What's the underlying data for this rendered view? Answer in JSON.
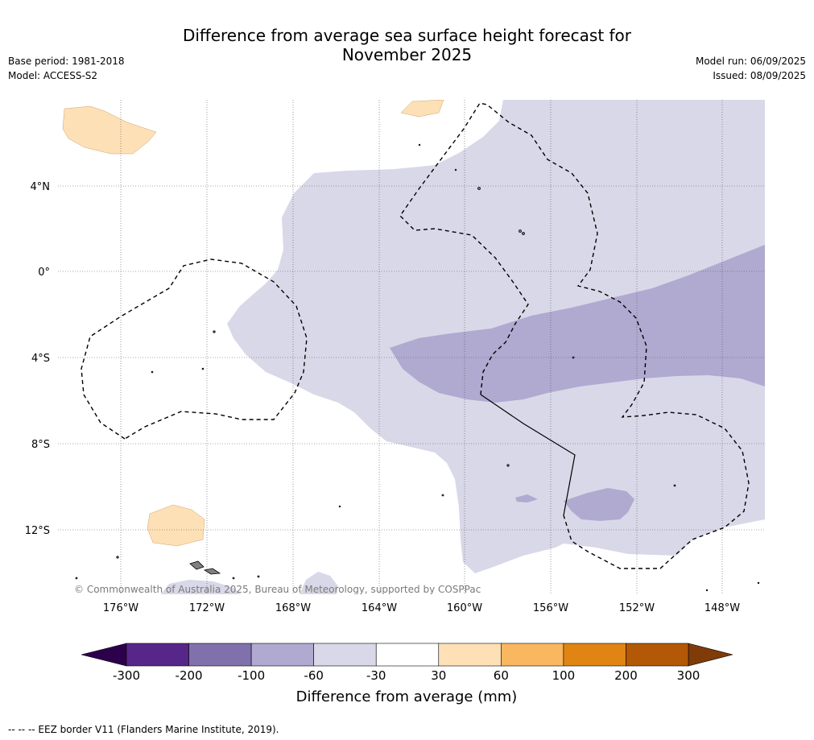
{
  "title_line1": "Difference from average sea surface height forecast for",
  "title_line2": "November 2025",
  "info_left": {
    "base_period": "Base period: 1981-2018",
    "model": "Model: ACCESS-S2"
  },
  "info_right": {
    "model_run": "Model run: 06/09/2025",
    "issued": "Issued: 08/09/2025"
  },
  "map": {
    "lat_labels": [
      "4°N",
      "0°",
      "4°S",
      "8°S",
      "12°S"
    ],
    "lon_labels": [
      "176°W",
      "172°W",
      "168°W",
      "164°W",
      "160°W",
      "156°W",
      "152°W",
      "148°W"
    ],
    "copyright": "© Commonwealth of Australia 2025, Bureau of Meteorology, supported by COSPPac",
    "land_color": "#808080",
    "ocean_color": "#ffffff"
  },
  "colorbar": {
    "title": "Difference from average (mm)",
    "ticks": [
      "-300",
      "-200",
      "-100",
      "-60",
      "-30",
      "30",
      "60",
      "100",
      "200",
      "300"
    ],
    "colors": [
      "#562788",
      "#8071ac",
      "#b0a9d0",
      "#d8d8e9",
      "#ffffff",
      "#fde0b5",
      "#f9b760",
      "#e08414",
      "#b35806"
    ],
    "low_extend_color": "#2d004b",
    "high_extend_color": "#7f3b08"
  },
  "footnote": "--  --  -- EEZ border V11 (Flanders Marine Institute, 2019)."
}
